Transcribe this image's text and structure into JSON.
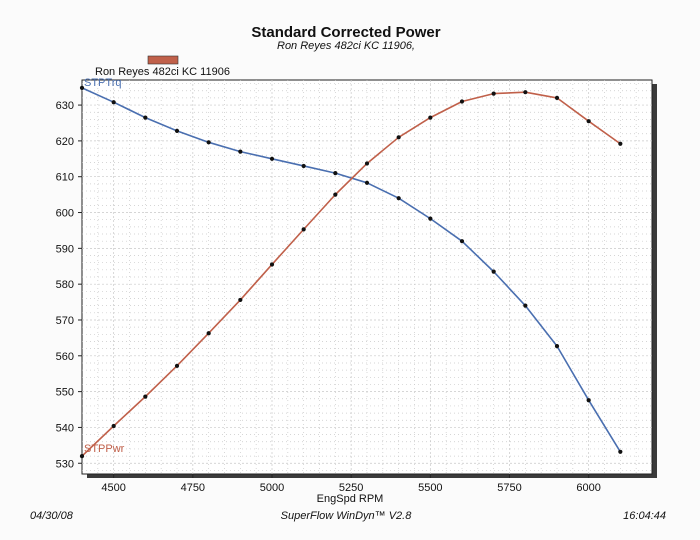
{
  "chart_data": {
    "type": "line",
    "title": "Standard Corrected Power",
    "subtitle": "Ron Reyes 482ci KC 11906,",
    "legend_label": "Ron Reyes 482ci KC 11906",
    "xlabel": "EngSpd  RPM",
    "xlim": [
      4400,
      6200
    ],
    "ylim": [
      527,
      637
    ],
    "x_ticks": [
      "4500",
      "4750",
      "5000",
      "5250",
      "5500",
      "5750",
      "6000"
    ],
    "y_ticks": [
      "530",
      "540",
      "550",
      "560",
      "570",
      "580",
      "590",
      "600",
      "610",
      "620",
      "630"
    ],
    "x": [
      4400,
      4500,
      4600,
      4700,
      4800,
      4900,
      5000,
      5100,
      5200,
      5300,
      5400,
      5500,
      5600,
      5700,
      5800,
      5900,
      6000,
      6100
    ],
    "series": [
      {
        "name": "STPTrq",
        "color": "#4a6fb0",
        "values": [
          634.8,
          630.8,
          626.5,
          622.8,
          619.6,
          617.0,
          615.0,
          613.0,
          611.0,
          608.3,
          604.0,
          598.3,
          592.0,
          583.5,
          574.0,
          562.7,
          547.6,
          533.2
        ]
      },
      {
        "name": "STPPwr",
        "color": "#c0604a",
        "values": [
          532.0,
          540.4,
          548.6,
          557.2,
          566.3,
          575.6,
          585.5,
          595.3,
          605.0,
          613.7,
          621.0,
          626.5,
          631.0,
          633.2,
          633.6,
          632.0,
          625.5,
          619.2
        ]
      }
    ]
  },
  "footer": {
    "date": "04/30/08",
    "software": "SuperFlow WinDyn™ V2.8",
    "time": "16:04:44"
  },
  "colors": {
    "legend_swatch": "#c0604a",
    "grid": "#c8c8c8",
    "plot_bg": "#ffffff",
    "shadow": "#3a3a3a"
  }
}
